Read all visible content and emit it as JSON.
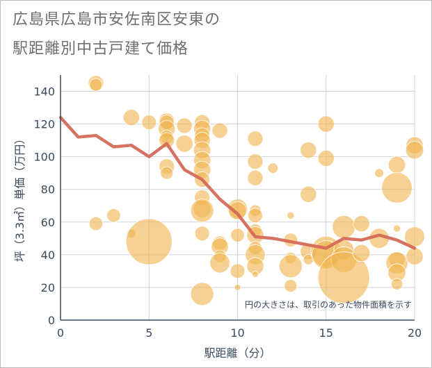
{
  "title_line1": "広島県広島市安佐南区安東の",
  "title_line2": "駅距離別中古戸建て価格",
  "chart_data": {
    "type": "scatter",
    "xlabel": "駅距離（分）",
    "ylabel": "坪（3.3㎡）単価（万円）",
    "xlim": [
      0,
      20
    ],
    "ylim": [
      0,
      150
    ],
    "x_ticks": [
      0,
      5,
      10,
      15,
      20
    ],
    "y_ticks": [
      0,
      20,
      40,
      60,
      80,
      100,
      120,
      140
    ],
    "grid": true,
    "annotation": "円の大きさは、取引のあった物件面積を示す",
    "colors": {
      "bubble": "#f0b451",
      "line": "#d46a58",
      "grid": "#c9d3de",
      "axis": "#3a4a5e"
    },
    "bubbles": [
      {
        "x": 2,
        "y": 145,
        "size": 90
      },
      {
        "x": 2,
        "y": 144,
        "size": 60
      },
      {
        "x": 2,
        "y": 59,
        "size": 70
      },
      {
        "x": 3,
        "y": 64,
        "size": 70
      },
      {
        "x": 4,
        "y": 124,
        "size": 100
      },
      {
        "x": 4,
        "y": 53,
        "size": 30
      },
      {
        "x": 5,
        "y": 121,
        "size": 80
      },
      {
        "x": 5,
        "y": 48,
        "size": 800
      },
      {
        "x": 6,
        "y": 122,
        "size": 90
      },
      {
        "x": 6,
        "y": 121,
        "size": 80
      },
      {
        "x": 6,
        "y": 117,
        "size": 110
      },
      {
        "x": 6,
        "y": 112,
        "size": 70
      },
      {
        "x": 6,
        "y": 110,
        "size": 90
      },
      {
        "x": 6,
        "y": 94,
        "size": 90
      },
      {
        "x": 6,
        "y": 90,
        "size": 60
      },
      {
        "x": 7,
        "y": 119,
        "size": 90
      },
      {
        "x": 7,
        "y": 108,
        "size": 110
      },
      {
        "x": 8,
        "y": 121,
        "size": 90
      },
      {
        "x": 8,
        "y": 117,
        "size": 110
      },
      {
        "x": 8,
        "y": 113,
        "size": 90
      },
      {
        "x": 8,
        "y": 110,
        "size": 100
      },
      {
        "x": 8,
        "y": 104,
        "size": 110
      },
      {
        "x": 8,
        "y": 98,
        "size": 110
      },
      {
        "x": 8,
        "y": 92,
        "size": 110
      },
      {
        "x": 8,
        "y": 86,
        "size": 90
      },
      {
        "x": 8,
        "y": 75,
        "size": 90
      },
      {
        "x": 8,
        "y": 68,
        "size": 120
      },
      {
        "x": 8,
        "y": 67,
        "size": 200
      },
      {
        "x": 8,
        "y": 53,
        "size": 80
      },
      {
        "x": 8,
        "y": 16,
        "size": 200
      },
      {
        "x": 9,
        "y": 116,
        "size": 90
      },
      {
        "x": 9,
        "y": 47,
        "size": 80
      },
      {
        "x": 9,
        "y": 45,
        "size": 110
      },
      {
        "x": 9,
        "y": 39,
        "size": 60
      },
      {
        "x": 9,
        "y": 35,
        "size": 150
      },
      {
        "x": 10,
        "y": 68,
        "size": 150
      },
      {
        "x": 10,
        "y": 67,
        "size": 120
      },
      {
        "x": 10,
        "y": 52,
        "size": 70
      },
      {
        "x": 10,
        "y": 30,
        "size": 80
      },
      {
        "x": 10,
        "y": 20,
        "size": 15
      },
      {
        "x": 11,
        "y": 111,
        "size": 90
      },
      {
        "x": 11,
        "y": 97,
        "size": 90
      },
      {
        "x": 11,
        "y": 87,
        "size": 90
      },
      {
        "x": 11,
        "y": 67,
        "size": 50
      },
      {
        "x": 11,
        "y": 64,
        "size": 80
      },
      {
        "x": 11,
        "y": 55,
        "size": 60
      },
      {
        "x": 11,
        "y": 52,
        "size": 110
      },
      {
        "x": 11,
        "y": 44,
        "size": 70
      },
      {
        "x": 11,
        "y": 40,
        "size": 150
      },
      {
        "x": 11,
        "y": 33,
        "size": 110
      },
      {
        "x": 11,
        "y": 28,
        "size": 15
      },
      {
        "x": 12,
        "y": 93,
        "size": 40
      },
      {
        "x": 13,
        "y": 64,
        "size": 20
      },
      {
        "x": 13,
        "y": 49,
        "size": 70
      },
      {
        "x": 13,
        "y": 38,
        "size": 50
      },
      {
        "x": 13,
        "y": 33,
        "size": 200
      },
      {
        "x": 13,
        "y": 21,
        "size": 60
      },
      {
        "x": 14,
        "y": 104,
        "size": 100
      },
      {
        "x": 14,
        "y": 77,
        "size": 100
      },
      {
        "x": 14,
        "y": 42,
        "size": 100
      },
      {
        "x": 14,
        "y": 37,
        "size": 40
      },
      {
        "x": 15,
        "y": 120,
        "size": 100
      },
      {
        "x": 15,
        "y": 99,
        "size": 100
      },
      {
        "x": 15,
        "y": 42,
        "size": 350
      },
      {
        "x": 15,
        "y": 40,
        "size": 300
      },
      {
        "x": 16,
        "y": 57,
        "size": 200
      },
      {
        "x": 16,
        "y": 43,
        "size": 150
      },
      {
        "x": 16,
        "y": 37,
        "size": 250
      },
      {
        "x": 16,
        "y": 26,
        "size": 1000
      },
      {
        "x": 17,
        "y": 59,
        "size": 100
      },
      {
        "x": 17,
        "y": 41,
        "size": 110
      },
      {
        "x": 18,
        "y": 90,
        "size": 30
      },
      {
        "x": 18,
        "y": 50,
        "size": 150
      },
      {
        "x": 19,
        "y": 95,
        "size": 110
      },
      {
        "x": 19,
        "y": 81,
        "size": 350
      },
      {
        "x": 19,
        "y": 56,
        "size": 20
      },
      {
        "x": 19,
        "y": 37,
        "size": 100
      },
      {
        "x": 19,
        "y": 35,
        "size": 180
      },
      {
        "x": 19,
        "y": 29,
        "size": 120
      },
      {
        "x": 19,
        "y": 22,
        "size": 50
      },
      {
        "x": 20,
        "y": 107,
        "size": 110
      },
      {
        "x": 20,
        "y": 104,
        "size": 120
      },
      {
        "x": 20,
        "y": 51,
        "size": 150
      },
      {
        "x": 20,
        "y": 39,
        "size": 110
      }
    ],
    "line": {
      "x": [
        0,
        1,
        2,
        3,
        4,
        5,
        6,
        7,
        8,
        9,
        10,
        11,
        12,
        13,
        14,
        15,
        16,
        17,
        18,
        19,
        20
      ],
      "y": [
        124,
        112,
        113,
        106,
        107,
        100,
        108,
        92,
        86,
        74,
        65,
        51,
        50,
        48,
        46,
        44,
        50,
        49,
        52,
        49,
        44
      ]
    }
  }
}
